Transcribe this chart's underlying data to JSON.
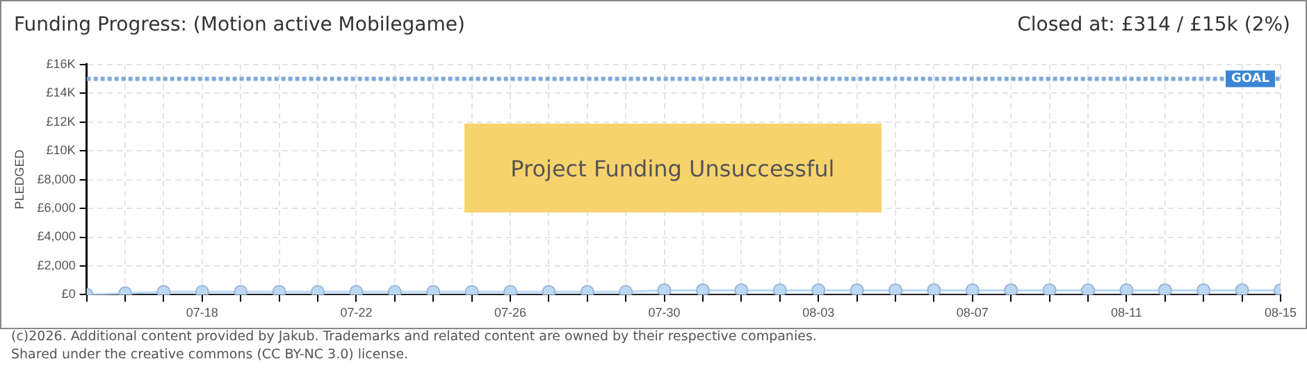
{
  "chart_data": {
    "type": "area",
    "title": "Funding Progress: (Motion active Mobilegame)",
    "subtitle": "Closed at:  £314 / £15k (2%)",
    "ylabel": "PLEDGED",
    "x": [
      "--07-15",
      "--07-16",
      "--07-17",
      "--07-18",
      "--07-19",
      "--07-20",
      "--07-21",
      "--07-22",
      "--07-23",
      "--07-24",
      "--07-25",
      "--07-26",
      "--07-27",
      "--07-28",
      "--07-29",
      "--07-30",
      "--07-31",
      "--08-01",
      "--08-02",
      "--08-03",
      "--08-04",
      "--08-05",
      "--08-06",
      "--08-07",
      "--08-08",
      "--08-09",
      "--08-10",
      "--08-11",
      "--08-12",
      "--08-13",
      "--08-14",
      "--08-15"
    ],
    "series": [
      {
        "color": "#bcd8f5",
        "values": [
          0,
          100,
          200,
          200,
          200,
          200,
          200,
          200,
          200,
          200,
          200,
          200,
          200,
          200,
          200,
          314,
          314,
          314,
          314,
          314,
          314,
          314,
          314,
          314,
          314,
          314,
          314,
          314,
          314,
          314,
          314,
          314
        ]
      }
    ],
    "xlim": [
      "--07-15",
      "--08-15"
    ],
    "xticks": [
      {
        "value": "--07-15",
        "label": null
      },
      {
        "value": "--07-16",
        "label": null
      },
      {
        "value": "--07-17",
        "label": null
      },
      {
        "value": "--07-18",
        "label": "07-18"
      },
      {
        "value": "--07-19",
        "label": null
      },
      {
        "value": "--07-20",
        "label": null
      },
      {
        "value": "--07-21",
        "label": null
      },
      {
        "value": "--07-22",
        "label": "07-22"
      },
      {
        "value": "--07-23",
        "label": null
      },
      {
        "value": "--07-24",
        "label": null
      },
      {
        "value": "--07-25",
        "label": null
      },
      {
        "value": "--07-26",
        "label": "07-26"
      },
      {
        "value": "--07-27",
        "label": null
      },
      {
        "value": "--07-28",
        "label": null
      },
      {
        "value": "--07-29",
        "label": null
      },
      {
        "value": "--07-30",
        "label": "07-30"
      },
      {
        "value": "--07-31",
        "label": null
      },
      {
        "value": "--08-01",
        "label": null
      },
      {
        "value": "--08-02",
        "label": null
      },
      {
        "value": "--08-03",
        "label": "08-03"
      },
      {
        "value": "--08-04",
        "label": null
      },
      {
        "value": "--08-05",
        "label": null
      },
      {
        "value": "--08-06",
        "label": null
      },
      {
        "value": "--08-07",
        "label": "08-07"
      },
      {
        "value": "--08-08",
        "label": null
      },
      {
        "value": "--08-09",
        "label": null
      },
      {
        "value": "--08-10",
        "label": null
      },
      {
        "value": "--08-11",
        "label": "08-11"
      },
      {
        "value": "--08-12",
        "label": null
      },
      {
        "value": "--08-13",
        "label": null
      },
      {
        "value": "--08-14",
        "label": null
      },
      {
        "value": "--08-15",
        "label": "08-15"
      }
    ],
    "ylim": [
      0,
      16000
    ],
    "yticks": [
      {
        "value": 0,
        "label": "£0"
      },
      {
        "value": 2000,
        "label": "£2,000"
      },
      {
        "value": 4000,
        "label": "£4,000"
      },
      {
        "value": 6000,
        "label": "£6,000"
      },
      {
        "value": 8000,
        "label": "£8,000"
      },
      {
        "value": 10000,
        "label": "£10K"
      },
      {
        "value": 12000,
        "label": "£12K"
      },
      {
        "value": 14000,
        "label": "£14K"
      },
      {
        "value": 16000,
        "label": "£16K"
      }
    ],
    "ref_lines": [
      {
        "axis": "y",
        "value": 15000,
        "label": "GOAL",
        "color": "#7fa9d8",
        "line_style": "dotted"
      }
    ],
    "annotations": [
      "Project Funding Unsuccessful",
      "(c)2026. Additional content provided by Jakub. Trademarks and related content are owned by their respective companies.",
      "Shared under the creative commons (CC BY-NC 3.0) license."
    ],
    "grid": true,
    "legend": false,
    "marker": "circle",
    "line_style": "solid"
  }
}
